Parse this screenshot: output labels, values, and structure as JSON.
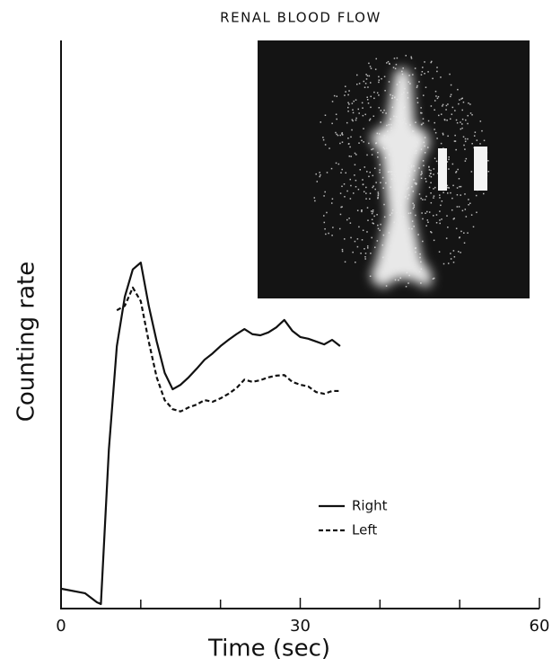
{
  "chart_data": {
    "type": "line",
    "title": "RENAL BLOOD FLOW",
    "x_label": "Time (sec)",
    "y_label": "Counting rate",
    "x": [
      0,
      3,
      4.5,
      5,
      6,
      7,
      8,
      9,
      10,
      11,
      12,
      13,
      14,
      15,
      16,
      17,
      18,
      19,
      20,
      21,
      22,
      23,
      24,
      25,
      26,
      27,
      28,
      29,
      30,
      31,
      32,
      33,
      34,
      35
    ],
    "series": [
      {
        "name": "Right",
        "color": "#111111",
        "dash": "solid",
        "values": [
          3.5,
          2.7,
          1.1,
          0.8,
          28,
          46.2,
          54.9,
          59.7,
          60.9,
          53.3,
          47,
          41.5,
          38.6,
          39.4,
          40.7,
          42.2,
          43.8,
          44.9,
          46.2,
          47.3,
          48.3,
          49.2,
          48.3,
          48.1,
          48.6,
          49.5,
          50.8,
          48.9,
          47.8,
          47.5,
          47,
          46.5,
          47.3,
          46.2
        ]
      },
      {
        "name": "Left",
        "color": "#111111",
        "dash": "dashed",
        "values": [
          null,
          null,
          null,
          null,
          null,
          52.5,
          53.3,
          56.5,
          54.1,
          47,
          40.7,
          36.7,
          35.1,
          34.7,
          35.4,
          35.9,
          36.7,
          36.4,
          37,
          37.8,
          38.8,
          40.3,
          39.9,
          40.2,
          40.7,
          41,
          41.1,
          39.9,
          39.4,
          39.1,
          38.1,
          37.8,
          38.3,
          38.3
        ]
      }
    ],
    "xlim": [
      0,
      60
    ],
    "xticks": [
      0,
      30,
      60
    ],
    "xminorticks": [
      10,
      20,
      40,
      50
    ],
    "ylim": [
      0,
      100
    ],
    "grid": false
  }
}
